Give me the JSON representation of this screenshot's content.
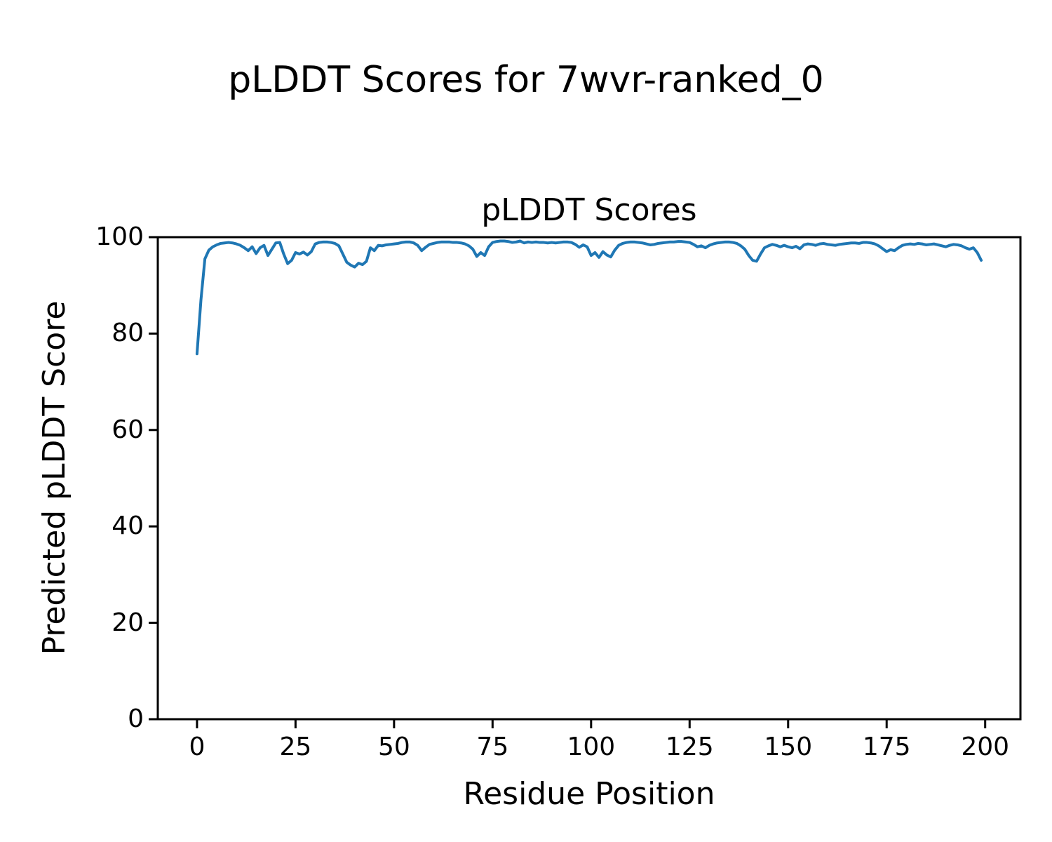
{
  "figure": {
    "suptitle": "pLDDT Scores for 7wvr-ranked_0"
  },
  "chart_data": {
    "type": "line",
    "title": "pLDDT Scores",
    "xlabel": "Residue Position",
    "ylabel": "Predicted pLDDT Score",
    "xlim": [
      -9.95,
      208.95
    ],
    "ylim": [
      0,
      100
    ],
    "x_ticks": [
      0,
      25,
      50,
      75,
      100,
      125,
      150,
      175,
      200
    ],
    "y_ticks": [
      0,
      20,
      40,
      60,
      80,
      100
    ],
    "grid": false,
    "legend": "none",
    "line_color": "#1f77b4",
    "line_width": 4,
    "x_start": 0,
    "x_step": 1,
    "values": [
      75.8,
      87.0,
      95.5,
      97.3,
      98.0,
      98.4,
      98.7,
      98.8,
      98.9,
      98.8,
      98.6,
      98.3,
      97.8,
      97.2,
      98.0,
      96.6,
      97.8,
      98.3,
      96.2,
      97.5,
      98.8,
      98.9,
      96.5,
      94.5,
      95.2,
      96.8,
      96.5,
      96.9,
      96.3,
      97.0,
      98.6,
      98.9,
      99.0,
      99.0,
      98.9,
      98.7,
      98.2,
      96.5,
      94.8,
      94.2,
      93.8,
      94.6,
      94.3,
      95.0,
      97.8,
      97.2,
      98.3,
      98.2,
      98.4,
      98.5,
      98.6,
      98.7,
      98.9,
      99.0,
      99.0,
      98.8,
      98.3,
      97.2,
      97.9,
      98.5,
      98.7,
      98.9,
      99.0,
      99.0,
      99.0,
      98.9,
      98.9,
      98.8,
      98.6,
      98.2,
      97.5,
      96.0,
      96.8,
      96.2,
      98.0,
      98.9,
      99.1,
      99.2,
      99.2,
      99.1,
      98.9,
      99.0,
      99.2,
      98.8,
      99.0,
      98.9,
      99.0,
      98.9,
      98.9,
      98.8,
      98.9,
      98.8,
      98.9,
      99.0,
      99.0,
      98.9,
      98.5,
      97.9,
      98.4,
      98.0,
      96.2,
      96.8,
      95.8,
      97.0,
      96.3,
      95.9,
      97.3,
      98.3,
      98.7,
      98.9,
      99.0,
      99.0,
      98.9,
      98.8,
      98.6,
      98.4,
      98.5,
      98.7,
      98.8,
      98.9,
      99.0,
      99.0,
      99.1,
      99.1,
      99.0,
      98.9,
      98.5,
      98.0,
      98.2,
      97.8,
      98.3,
      98.6,
      98.8,
      98.9,
      99.0,
      99.0,
      98.9,
      98.7,
      98.2,
      97.5,
      96.2,
      95.2,
      95.0,
      96.5,
      97.8,
      98.2,
      98.5,
      98.3,
      98.0,
      98.3,
      98.0,
      97.8,
      98.1,
      97.6,
      98.4,
      98.6,
      98.5,
      98.3,
      98.6,
      98.7,
      98.5,
      98.4,
      98.3,
      98.5,
      98.6,
      98.7,
      98.8,
      98.8,
      98.7,
      98.9,
      98.9,
      98.8,
      98.6,
      98.2,
      97.6,
      97.0,
      97.4,
      97.2,
      97.8,
      98.3,
      98.5,
      98.6,
      98.5,
      98.7,
      98.6,
      98.4,
      98.5,
      98.6,
      98.4,
      98.2,
      98.0,
      98.3,
      98.5,
      98.4,
      98.2,
      97.8,
      97.5,
      97.8,
      96.8,
      95.2
    ]
  }
}
